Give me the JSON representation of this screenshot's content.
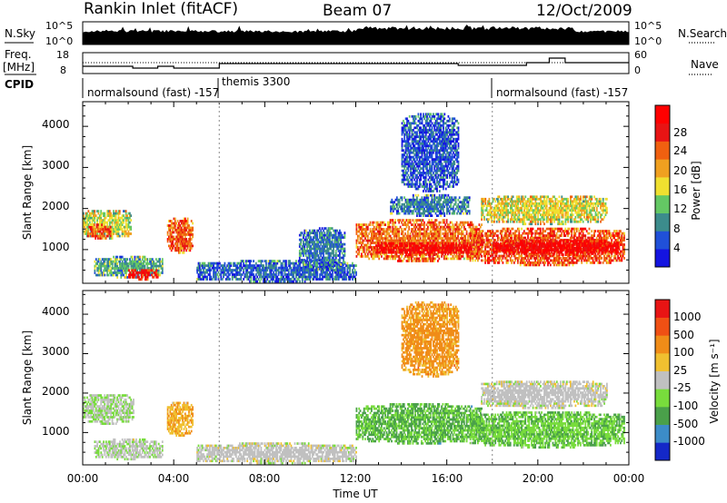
{
  "header": {
    "station": "Rankin Inlet (fitACF)",
    "beam": "Beam 07",
    "date": "12/Oct/2009"
  },
  "strip_labels": {
    "nsky": "N.Sky",
    "nsky_ticks": [
      "10^5",
      "10^0"
    ],
    "nsearch": "N.Search",
    "nsearch_ticks": [
      "10^5",
      "10^0"
    ],
    "freq_line1": "Freq.",
    "freq_line2": "[MHz]",
    "freq_ticks": [
      "18",
      "8"
    ],
    "nave": "Nave",
    "nave_ticks": [
      "60",
      "0"
    ],
    "cpid": "CPID"
  },
  "cpid_segments": [
    {
      "label": "normalsound (fast) -157",
      "start_hour": 0
    },
    {
      "label": "themis 3300",
      "start_hour": 6
    },
    {
      "label": "normalsound (fast) -157",
      "start_hour": 18
    }
  ],
  "axes": {
    "ylabel": "Slant Range [km]",
    "yticks": [
      "4000",
      "3000",
      "2000",
      "1000"
    ],
    "xticks": [
      "00:00",
      "04:00",
      "08:00",
      "12:00",
      "16:00",
      "20:00",
      "00:00"
    ],
    "xlabel": "Time UT"
  },
  "colorbars": {
    "power": {
      "title": "Power [dB]",
      "labels": [
        "28",
        "24",
        "20",
        "16",
        "12",
        "8",
        "4"
      ]
    },
    "velocity": {
      "title": "Velocity [m s⁻¹]",
      "labels": [
        "1000",
        "500",
        "100",
        "25",
        "-25",
        "-100",
        "-500",
        "-1000"
      ]
    }
  },
  "colors": {
    "power_scale": [
      "#1414e0",
      "#2050d8",
      "#3c8c8c",
      "#64c864",
      "#f0e030",
      "#f0a020",
      "#f06010",
      "#e81414",
      "#ff0000"
    ],
    "velocity_scale": [
      "#1428c8",
      "#3c8cc8",
      "#4aa04a",
      "#78dc3c",
      "#c0c0c0",
      "#f0c030",
      "#f08c18",
      "#f05014",
      "#e81414"
    ]
  },
  "chart_data": [
    {
      "type": "heatmap",
      "title": "Power [dB]",
      "xlabel": "Time UT",
      "ylabel": "Slant Range [km]",
      "xlim": [
        0,
        24
      ],
      "ylim": [
        180,
        4600
      ],
      "zlim": [
        0,
        30
      ],
      "blobs": [
        {
          "t0": 0.0,
          "t1": 2.1,
          "r0": 1250,
          "r1": 1950,
          "value": 14
        },
        {
          "t0": 0.2,
          "t1": 1.2,
          "r0": 1250,
          "r1": 1600,
          "value": 22
        },
        {
          "t0": 0.5,
          "t1": 3.5,
          "r0": 300,
          "r1": 800,
          "value": 10
        },
        {
          "t0": 2.0,
          "t1": 3.3,
          "r0": 250,
          "r1": 500,
          "value": 26
        },
        {
          "t0": 3.7,
          "t1": 4.8,
          "r0": 900,
          "r1": 1750,
          "value": 22
        },
        {
          "t0": 5.0,
          "t1": 12.0,
          "r0": 200,
          "r1": 700,
          "value": 6
        },
        {
          "t0": 9.5,
          "t1": 11.5,
          "r0": 500,
          "r1": 1500,
          "value": 7
        },
        {
          "t0": 12.0,
          "t1": 17.5,
          "r0": 700,
          "r1": 1700,
          "value": 21
        },
        {
          "t0": 12.8,
          "t1": 17.0,
          "r0": 850,
          "r1": 1150,
          "value": 28
        },
        {
          "t0": 13.5,
          "t1": 17.0,
          "r0": 1800,
          "r1": 2300,
          "value": 7
        },
        {
          "t0": 17.0,
          "t1": 23.8,
          "r0": 600,
          "r1": 1500,
          "value": 23
        },
        {
          "t0": 18.0,
          "t1": 23.5,
          "r0": 850,
          "r1": 1200,
          "value": 28
        },
        {
          "t0": 17.5,
          "t1": 23.0,
          "r0": 1600,
          "r1": 2300,
          "value": 15
        },
        {
          "t0": 14.0,
          "t1": 16.5,
          "r0": 2400,
          "r1": 4300,
          "value": 5
        }
      ]
    },
    {
      "type": "heatmap",
      "title": "Velocity [m s⁻¹]",
      "xlabel": "Time UT",
      "ylabel": "Slant Range [km]",
      "xlim": [
        0,
        24
      ],
      "ylim": [
        180,
        4600
      ],
      "zlim": [
        -1000,
        1000
      ],
      "blobs": [
        {
          "t0": 0.0,
          "t1": 2.2,
          "r0": 1200,
          "r1": 1950,
          "value": -100
        },
        {
          "t0": 0.5,
          "t1": 3.5,
          "r0": 300,
          "r1": 800,
          "value": -60
        },
        {
          "t0": 3.7,
          "t1": 4.8,
          "r0": 900,
          "r1": 1750,
          "value": 300
        },
        {
          "t0": 5.0,
          "t1": 12.0,
          "r0": 200,
          "r1": 700,
          "value": 0
        },
        {
          "t0": 12.0,
          "t1": 17.5,
          "r0": 700,
          "r1": 1700,
          "value": -350
        },
        {
          "t0": 17.0,
          "t1": 23.8,
          "r0": 600,
          "r1": 1500,
          "value": -300
        },
        {
          "t0": 17.5,
          "t1": 23.0,
          "r0": 1600,
          "r1": 2300,
          "value": 0
        },
        {
          "t0": 14.0,
          "t1": 16.5,
          "r0": 2400,
          "r1": 4300,
          "value": 400
        }
      ]
    }
  ]
}
